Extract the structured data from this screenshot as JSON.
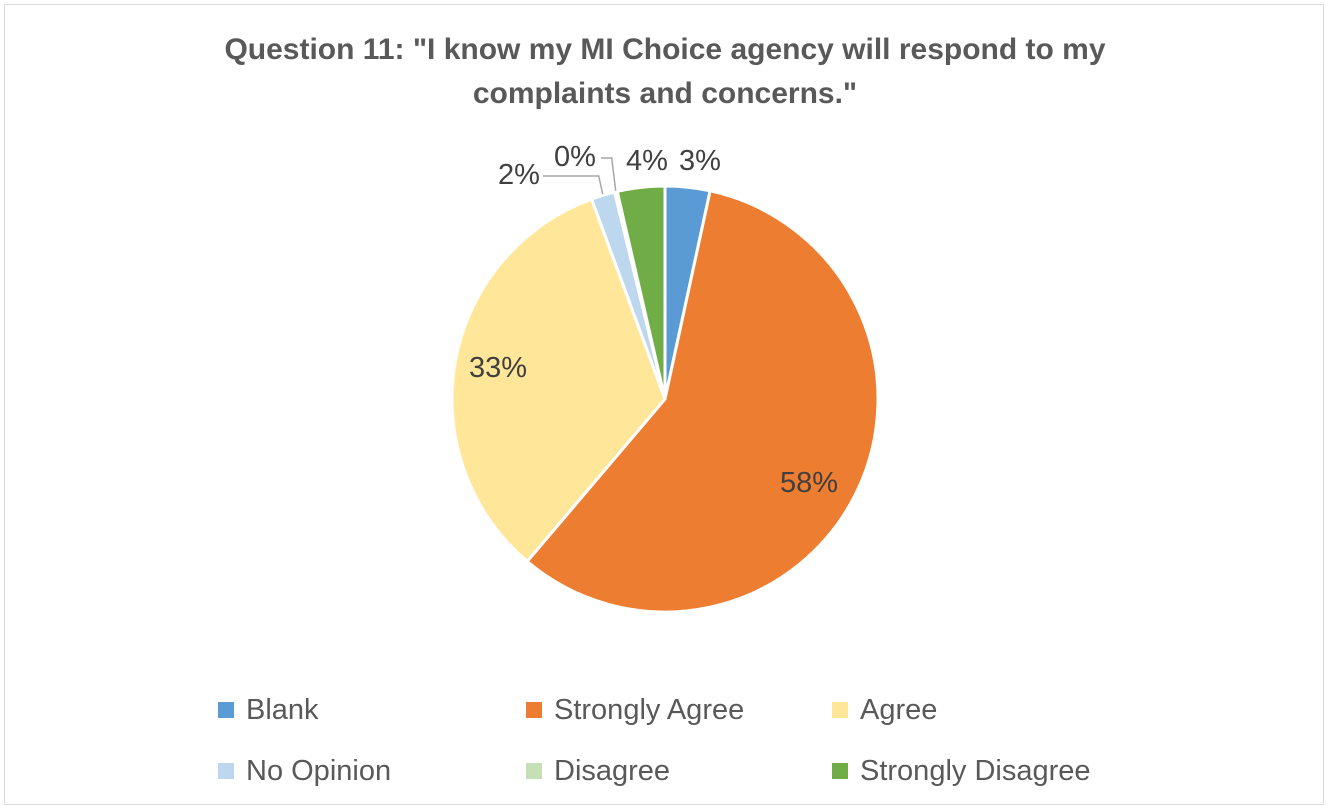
{
  "chart_data": {
    "type": "pie",
    "title_lines": [
      "Question 11: \"I know my MI Choice agency will respond to my",
      "complaints and concerns.\""
    ],
    "slices": [
      {
        "name": "Blank",
        "value": 3.4,
        "label": "3%",
        "color": "#5B9BD5"
      },
      {
        "name": "Strongly Agree",
        "value": 57.8,
        "label": "58%",
        "color": "#ED7D31"
      },
      {
        "name": "Agree",
        "value": 33.2,
        "label": "33%",
        "color": "#FFE699"
      },
      {
        "name": "No Opinion",
        "value": 1.8,
        "label": "2%",
        "color": "#BDD7EE"
      },
      {
        "name": "Disagree",
        "value": 0.2,
        "label": "0%",
        "color": "#C5E0B4"
      },
      {
        "name": "Strongly Disagree",
        "value": 3.6,
        "label": "4%",
        "color": "#70AD47"
      }
    ],
    "legend_position": "bottom"
  }
}
